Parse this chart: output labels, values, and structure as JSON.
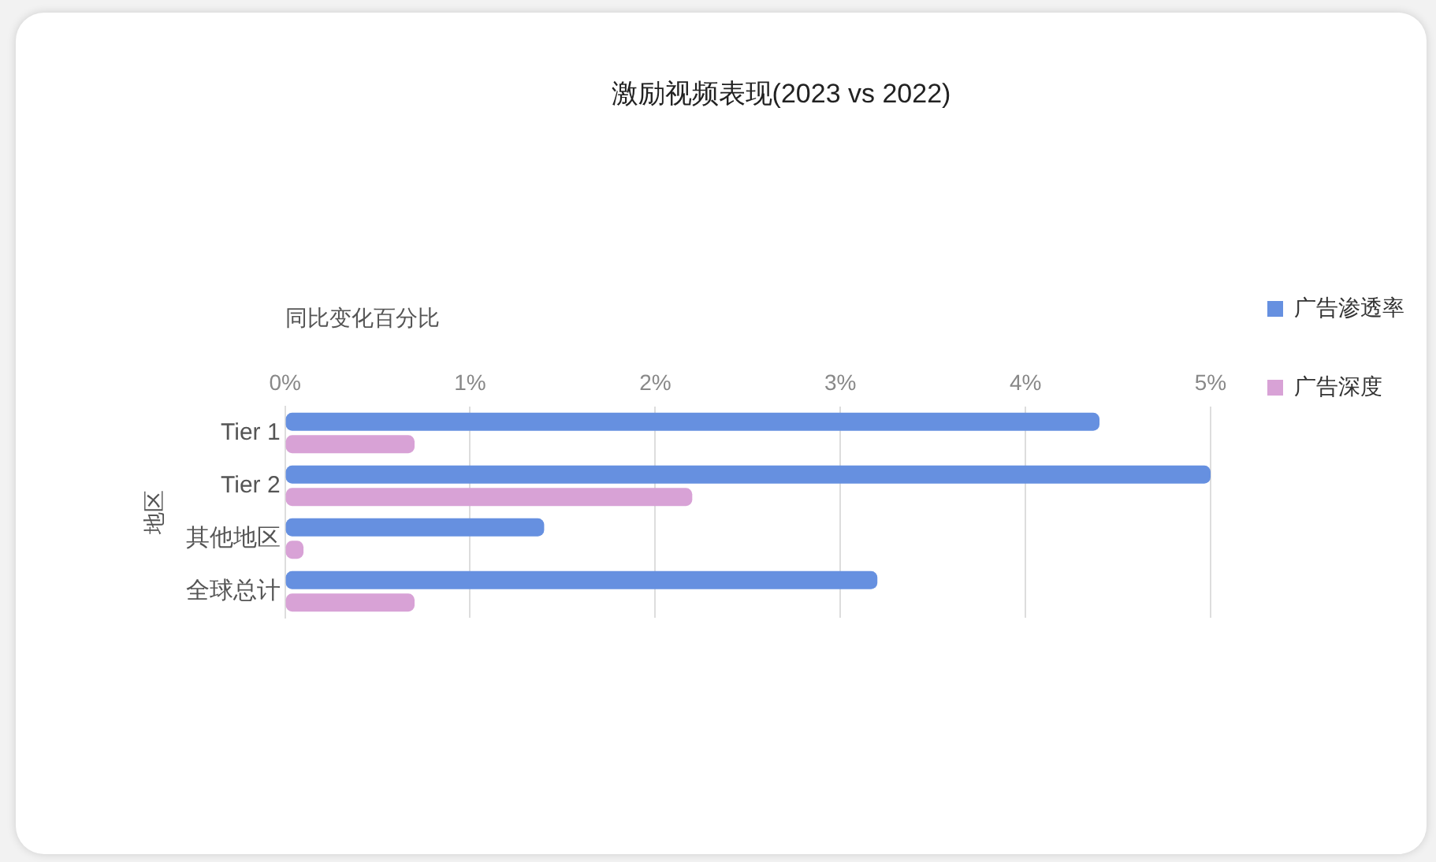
{
  "chart_data": {
    "type": "bar",
    "orientation": "horizontal",
    "title": "激励视频表现(2023 vs 2022)",
    "xlabel": "同比变化百分比",
    "ylabel": "地区",
    "categories": [
      "Tier 1",
      "Tier 2",
      "其他地区",
      "全球总计"
    ],
    "series": [
      {
        "name": "广告渗透率",
        "color": "#6690e0",
        "values": [
          4.4,
          5.0,
          1.4,
          3.2
        ]
      },
      {
        "name": "广告深度",
        "color": "#d8a2d6",
        "values": [
          0.7,
          2.2,
          0.1,
          0.7
        ]
      }
    ],
    "xlim": [
      0,
      5
    ],
    "xticks": [
      {
        "value": 0,
        "label": "0%"
      },
      {
        "value": 1,
        "label": "1%"
      },
      {
        "value": 2,
        "label": "2%"
      },
      {
        "value": 3,
        "label": "3%"
      },
      {
        "value": 4,
        "label": "4%"
      },
      {
        "value": 5,
        "label": "5%"
      }
    ],
    "grid": "x",
    "legend": "right"
  }
}
